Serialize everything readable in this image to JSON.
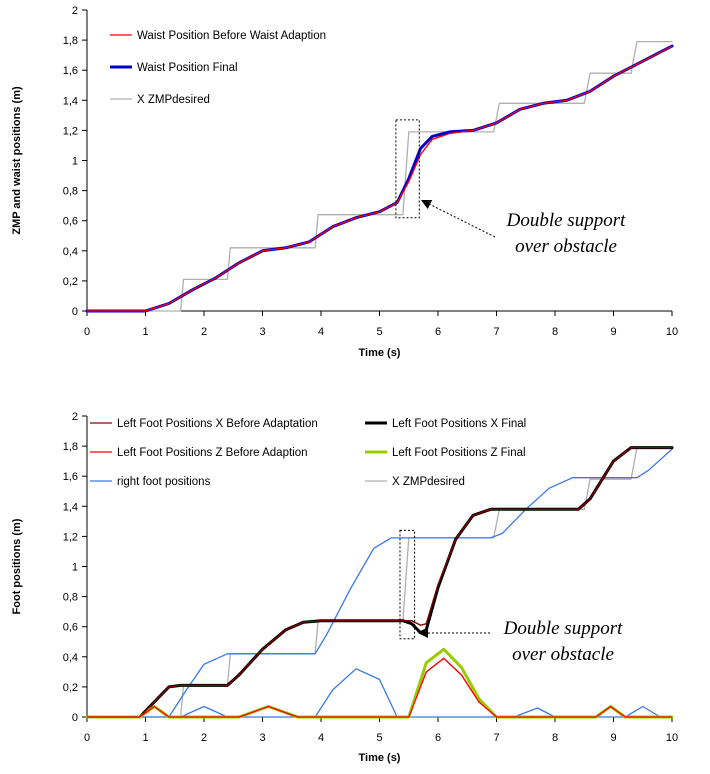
{
  "chart_data": [
    {
      "type": "line",
      "xlabel": "Time (s)",
      "ylabel": "ZMP and waist positions (m)",
      "xlim": [
        0,
        10
      ],
      "ylim": [
        0,
        2
      ],
      "x_ticks": [
        "0",
        "1",
        "2",
        "3",
        "4",
        "5",
        "6",
        "7",
        "8",
        "9",
        "10"
      ],
      "y_ticks": [
        "0",
        "0,2",
        "0,4",
        "0,6",
        "0,8",
        "1",
        "1,2",
        "1,4",
        "1,6",
        "1,8",
        "2"
      ],
      "grid": false,
      "legend_position": "top-left",
      "annotation": [
        "Double support",
        "over obstacle"
      ],
      "series": [
        {
          "name": "Waist Position Before Waist Adaption",
          "color": "#ff0000",
          "style": "thin",
          "x": [
            0,
            1,
            1.4,
            1.8,
            2.2,
            2.6,
            3.0,
            3.4,
            3.8,
            4.2,
            4.6,
            5.0,
            5.3,
            5.5,
            5.7,
            5.9,
            6.2,
            6.6,
            7.0,
            7.4,
            7.8,
            8.2,
            8.6,
            9.0,
            9.4,
            9.8,
            10
          ],
          "y": [
            0,
            0,
            0.05,
            0.14,
            0.22,
            0.32,
            0.4,
            0.42,
            0.46,
            0.56,
            0.62,
            0.66,
            0.72,
            0.86,
            1.04,
            1.14,
            1.18,
            1.2,
            1.25,
            1.34,
            1.38,
            1.4,
            1.46,
            1.56,
            1.64,
            1.72,
            1.76
          ]
        },
        {
          "name": "Waist Position Final",
          "color": "#0000cc",
          "style": "thick",
          "x": [
            0,
            1,
            1.4,
            1.8,
            2.2,
            2.6,
            3.0,
            3.4,
            3.8,
            4.2,
            4.6,
            5.0,
            5.3,
            5.5,
            5.7,
            5.9,
            6.2,
            6.6,
            7.0,
            7.4,
            7.8,
            8.2,
            8.6,
            9.0,
            9.4,
            9.8,
            10
          ],
          "y": [
            0,
            0,
            0.05,
            0.14,
            0.22,
            0.32,
            0.4,
            0.42,
            0.46,
            0.56,
            0.62,
            0.66,
            0.72,
            0.88,
            1.08,
            1.16,
            1.19,
            1.2,
            1.25,
            1.34,
            1.38,
            1.4,
            1.46,
            1.56,
            1.64,
            1.72,
            1.76
          ]
        },
        {
          "name": "X ZMPdesired",
          "color": "#b0b0b0",
          "style": "step",
          "x": [
            0,
            1.6,
            1.65,
            2.4,
            2.45,
            3.9,
            3.95,
            5.4,
            5.5,
            6.95,
            7.05,
            8.5,
            8.6,
            9.3,
            9.4,
            10
          ],
          "y": [
            0,
            0,
            0.21,
            0.21,
            0.42,
            0.42,
            0.64,
            0.64,
            1.19,
            1.19,
            1.38,
            1.38,
            1.58,
            1.58,
            1.79,
            1.79
          ]
        }
      ]
    },
    {
      "type": "line",
      "xlabel": "Time (s)",
      "ylabel": "Foot positions (m)",
      "xlim": [
        0,
        10
      ],
      "ylim": [
        0,
        2
      ],
      "x_ticks": [
        "0",
        "1",
        "2",
        "3",
        "4",
        "5",
        "6",
        "7",
        "8",
        "9",
        "10"
      ],
      "y_ticks": [
        "0",
        "0,2",
        "0,4",
        "0,6",
        "0,8",
        "1",
        "1,2",
        "1,4",
        "1,6",
        "1,8",
        "2"
      ],
      "grid": false,
      "legend_position": "top",
      "annotation": [
        "Double support",
        "over obstacle"
      ],
      "series": [
        {
          "name": "Left Foot Positions X Before Adaptation",
          "color": "#8b0000",
          "style": "thin",
          "x": [
            0,
            0.9,
            1.2,
            1.4,
            1.6,
            2.0,
            2.4,
            2.6,
            3.0,
            3.4,
            3.7,
            4.0,
            4.4,
            5.4,
            5.55,
            5.7,
            5.8,
            6.0,
            6.3,
            6.6,
            6.9,
            7.4,
            8.4,
            8.6,
            9.0,
            9.3,
            10
          ],
          "y": [
            0,
            0,
            0.12,
            0.2,
            0.21,
            0.21,
            0.21,
            0.28,
            0.45,
            0.58,
            0.63,
            0.64,
            0.64,
            0.64,
            0.64,
            0.61,
            0.62,
            0.88,
            1.18,
            1.34,
            1.38,
            1.38,
            1.38,
            1.45,
            1.7,
            1.79,
            1.79
          ]
        },
        {
          "name": "Left Foot Positions X Final",
          "color": "#000000",
          "style": "thick",
          "x": [
            0,
            0.9,
            1.2,
            1.4,
            1.6,
            2.0,
            2.4,
            2.6,
            3.0,
            3.4,
            3.7,
            4.0,
            4.4,
            5.4,
            5.55,
            5.7,
            5.8,
            6.0,
            6.3,
            6.6,
            6.9,
            7.4,
            8.4,
            8.6,
            9.0,
            9.3,
            10
          ],
          "y": [
            0,
            0,
            0.12,
            0.2,
            0.21,
            0.21,
            0.21,
            0.28,
            0.45,
            0.58,
            0.63,
            0.64,
            0.64,
            0.64,
            0.62,
            0.56,
            0.58,
            0.86,
            1.18,
            1.34,
            1.38,
            1.38,
            1.38,
            1.45,
            1.7,
            1.79,
            1.79
          ]
        },
        {
          "name": "Left Foot Positions Z Before Adaption",
          "color": "#ff0000",
          "style": "thin",
          "x": [
            0,
            0.9,
            1.15,
            1.4,
            2.6,
            3.1,
            3.6,
            5.5,
            5.8,
            6.1,
            6.4,
            6.7,
            7.0,
            8.7,
            8.95,
            9.2,
            10
          ],
          "y": [
            0,
            0,
            0.07,
            0,
            0,
            0.07,
            0,
            0,
            0.3,
            0.39,
            0.28,
            0.1,
            0,
            0,
            0.07,
            0,
            0
          ]
        },
        {
          "name": "Left Foot Positions Z Final",
          "color": "#99cc00",
          "style": "thick",
          "x": [
            0,
            0.9,
            1.15,
            1.4,
            2.6,
            3.1,
            3.6,
            5.5,
            5.8,
            6.1,
            6.4,
            6.7,
            7.0,
            8.7,
            8.95,
            9.2,
            10
          ],
          "y": [
            0,
            0,
            0.07,
            0,
            0,
            0.07,
            0,
            0,
            0.36,
            0.45,
            0.33,
            0.12,
            0,
            0,
            0.07,
            0,
            0
          ]
        },
        {
          "name": "right foot positions",
          "color": "#3a78e8",
          "style": "thin",
          "x": [
            0,
            1.5,
            1.6,
            2.0,
            2.4,
            2.7,
            3.0,
            3.4,
            3.9,
            4.2,
            4.6,
            5.0,
            5.3,
            5.6,
            6.0,
            6.5,
            7.0,
            7.3,
            7.7,
            8.0,
            8.3,
            8.6,
            8.9,
            9.2,
            9.5,
            9.8,
            10
          ],
          "y": [
            0,
            0,
            0,
            0.07,
            0,
            0,
            0,
            0,
            0,
            0.18,
            0.32,
            0.25,
            0,
            0,
            0,
            0,
            0,
            0,
            0.06,
            0,
            0,
            0,
            0,
            0,
            0.07,
            0,
            0
          ]
        },
        {
          "name": "right foot positions",
          "color": "#3a78e8",
          "style": "thin",
          "x": [
            1.4,
            1.7,
            2.0,
            2.4,
            3.9,
            4.1,
            4.5,
            4.9,
            5.2,
            6.9,
            7.1,
            7.5,
            7.9,
            8.3,
            8.5,
            8.8,
            9.4,
            9.6,
            10
          ],
          "y": [
            0,
            0.18,
            0.35,
            0.42,
            0.42,
            0.55,
            0.85,
            1.12,
            1.19,
            1.19,
            1.22,
            1.38,
            1.52,
            1.59,
            1.59,
            1.59,
            1.59,
            1.64,
            1.78
          ]
        },
        {
          "name": "X ZMPdesired",
          "color": "#b0b0b0",
          "style": "step",
          "x": [
            0,
            1.6,
            1.65,
            2.4,
            2.45,
            3.9,
            3.95,
            5.4,
            5.5,
            6.95,
            7.05,
            8.5,
            8.6,
            9.3,
            9.4,
            10
          ],
          "y": [
            0,
            0,
            0.21,
            0.21,
            0.42,
            0.42,
            0.64,
            0.64,
            1.19,
            1.19,
            1.38,
            1.38,
            1.58,
            1.58,
            1.79,
            1.79
          ]
        }
      ]
    }
  ]
}
